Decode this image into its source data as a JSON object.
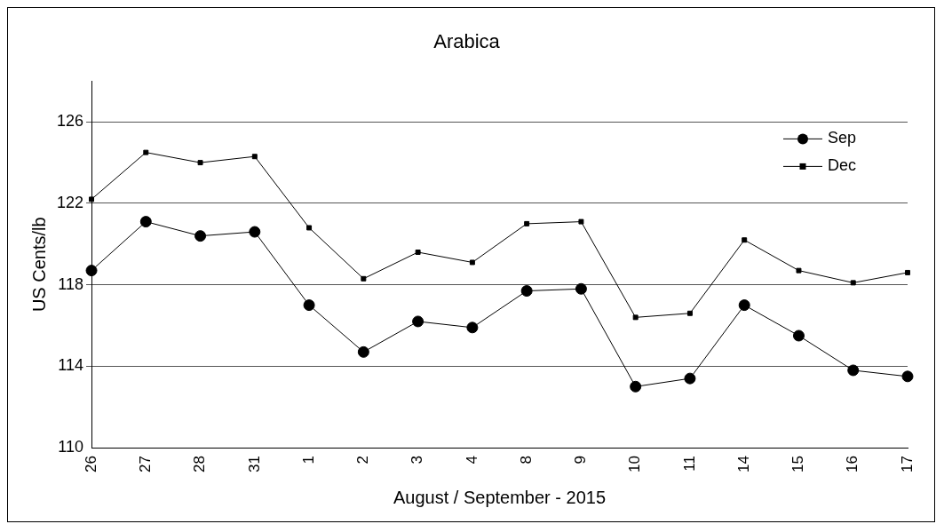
{
  "chart_data": {
    "type": "line",
    "title": "Arabica",
    "xlabel": "August / September - 2015",
    "ylabel": "US Cents/lb",
    "categories": [
      "26",
      "27",
      "28",
      "31",
      "1",
      "2",
      "3",
      "4",
      "8",
      "9",
      "10",
      "11",
      "14",
      "15",
      "16",
      "17"
    ],
    "series": [
      {
        "name": "Sep",
        "color": "#000000",
        "marker": "circle",
        "values": [
          118.7,
          121.1,
          120.4,
          120.6,
          117.0,
          114.7,
          116.2,
          115.9,
          117.7,
          117.8,
          113.0,
          113.4,
          117.0,
          115.5,
          113.8,
          113.5
        ]
      },
      {
        "name": "Dec",
        "color": "#000000",
        "marker": "square",
        "values": [
          122.2,
          124.5,
          124.0,
          124.3,
          120.8,
          118.3,
          119.6,
          119.1,
          121.0,
          121.1,
          116.4,
          116.6,
          120.2,
          118.7,
          118.1,
          118.6
        ]
      }
    ],
    "ylim": [
      110,
      128
    ],
    "yticks": [
      110,
      114,
      118,
      122,
      126
    ],
    "grid": "y",
    "legend": "top right",
    "line_style": "solid"
  }
}
